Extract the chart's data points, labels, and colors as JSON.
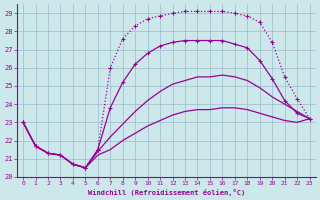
{
  "bg_color": "#cce8ea",
  "line_color": "#990099",
  "grid_color": "#99bbcc",
  "xlabel": "Windchill (Refroidissement éolien,°C)",
  "xlim": [
    -0.5,
    23.5
  ],
  "ylim": [
    20,
    29.5
  ],
  "yticks": [
    20,
    21,
    22,
    23,
    24,
    25,
    26,
    27,
    28,
    29
  ],
  "xticks": [
    0,
    1,
    2,
    3,
    4,
    5,
    6,
    7,
    8,
    9,
    10,
    11,
    12,
    13,
    14,
    15,
    16,
    17,
    18,
    19,
    20,
    21,
    22,
    23
  ],
  "series": [
    {
      "x": [
        0,
        1,
        2,
        3,
        4,
        5,
        6,
        7,
        8,
        9,
        10,
        11,
        12,
        13,
        14,
        15,
        16,
        17,
        18,
        19,
        20,
        21,
        22,
        23
      ],
      "y": [
        23.0,
        21.7,
        21.3,
        21.2,
        20.7,
        20.5,
        21.2,
        21.5,
        22.0,
        22.4,
        22.8,
        23.1,
        23.4,
        23.6,
        23.7,
        23.7,
        23.8,
        23.8,
        23.7,
        23.5,
        23.3,
        23.1,
        23.0,
        23.2
      ],
      "linestyle": "-",
      "marker": null,
      "linewidth": 0.9,
      "markersize": 0
    },
    {
      "x": [
        0,
        1,
        2,
        3,
        4,
        5,
        6,
        7,
        8,
        9,
        10,
        11,
        12,
        13,
        14,
        15,
        16,
        17,
        18,
        19,
        20,
        21,
        22,
        23
      ],
      "y": [
        23.0,
        21.7,
        21.3,
        21.2,
        20.7,
        20.5,
        21.4,
        22.2,
        22.9,
        23.6,
        24.2,
        24.7,
        25.1,
        25.3,
        25.5,
        25.5,
        25.6,
        25.5,
        25.3,
        24.9,
        24.4,
        24.0,
        23.6,
        23.2
      ],
      "linestyle": "-",
      "marker": null,
      "linewidth": 0.9,
      "markersize": 0
    },
    {
      "x": [
        0,
        1,
        2,
        3,
        4,
        5,
        6,
        7,
        8,
        9,
        10,
        11,
        12,
        13,
        14,
        15,
        16,
        17,
        18,
        19,
        20,
        21,
        22,
        23
      ],
      "y": [
        23.0,
        21.7,
        21.3,
        21.2,
        20.7,
        20.5,
        21.5,
        23.8,
        25.2,
        26.2,
        26.8,
        27.2,
        27.4,
        27.5,
        27.5,
        27.5,
        27.5,
        27.3,
        27.1,
        26.4,
        25.4,
        24.2,
        23.5,
        23.2
      ],
      "linestyle": "-",
      "marker": "+",
      "linewidth": 0.9,
      "markersize": 3
    },
    {
      "x": [
        0,
        1,
        2,
        3,
        4,
        5,
        6,
        7,
        8,
        9,
        10,
        11,
        12,
        13,
        14,
        15,
        16,
        17,
        18,
        19,
        20,
        21,
        22,
        23
      ],
      "y": [
        23.0,
        21.7,
        21.3,
        21.2,
        20.7,
        20.5,
        21.5,
        26.0,
        27.6,
        28.3,
        28.7,
        28.85,
        29.0,
        29.1,
        29.1,
        29.1,
        29.1,
        29.0,
        28.85,
        28.5,
        27.4,
        25.5,
        24.3,
        23.2
      ],
      "linestyle": ":",
      "marker": "+",
      "linewidth": 0.9,
      "markersize": 3
    }
  ]
}
